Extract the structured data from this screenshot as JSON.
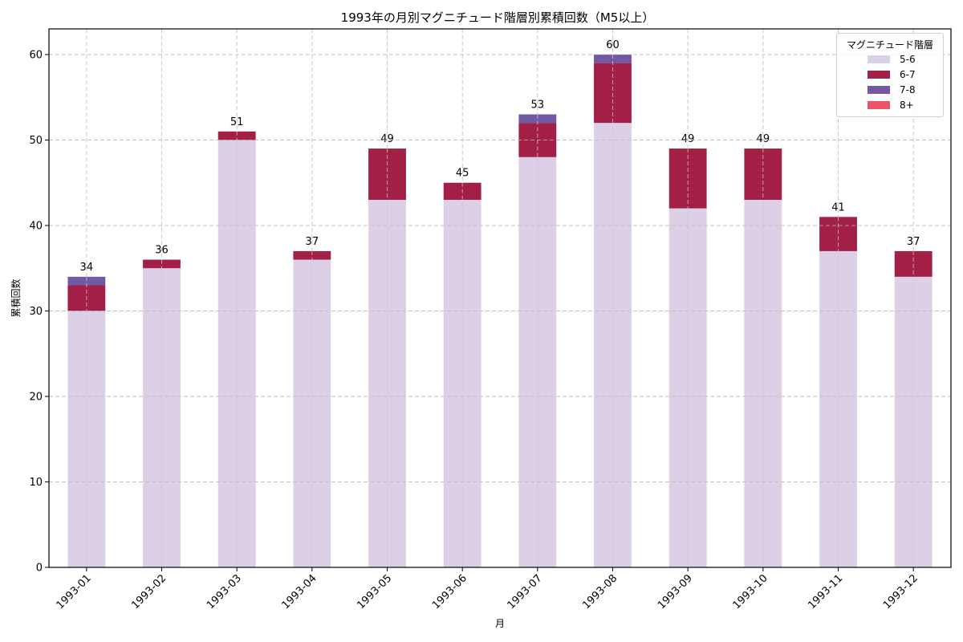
{
  "chart_data": {
    "type": "bar",
    "stacked": true,
    "title": "1993年の月別マグニチュード階層別累積回数（M5以上）",
    "xlabel": "月",
    "ylabel": "累積回数",
    "ylim": [
      0,
      63
    ],
    "yticks": [
      0,
      10,
      20,
      30,
      40,
      50,
      60
    ],
    "grid": true,
    "legend_title": "マグニチュード階層",
    "legend_position": "upper right",
    "categories": [
      "1993-01",
      "1993-02",
      "1993-03",
      "1993-04",
      "1993-05",
      "1993-06",
      "1993-07",
      "1993-08",
      "1993-09",
      "1993-10",
      "1993-11",
      "1993-12"
    ],
    "series": [
      {
        "name": "5-6",
        "color": "#dcd0e6",
        "values": [
          30,
          35,
          50,
          36,
          43,
          43,
          48,
          52,
          42,
          43,
          37,
          34
        ]
      },
      {
        "name": "6-7",
        "color": "#a21f45",
        "values": [
          3,
          1,
          1,
          1,
          6,
          2,
          4,
          7,
          7,
          6,
          4,
          3
        ]
      },
      {
        "name": "7-8",
        "color": "#7359a3",
        "values": [
          1,
          0,
          0,
          0,
          0,
          0,
          1,
          1,
          0,
          0,
          0,
          0
        ]
      },
      {
        "name": "8+",
        "color": "#e85668",
        "values": [
          0,
          0,
          0,
          0,
          0,
          0,
          0,
          0,
          0,
          0,
          0,
          0
        ]
      }
    ],
    "totals": [
      34,
      36,
      51,
      37,
      49,
      45,
      53,
      60,
      49,
      49,
      41,
      37
    ]
  }
}
